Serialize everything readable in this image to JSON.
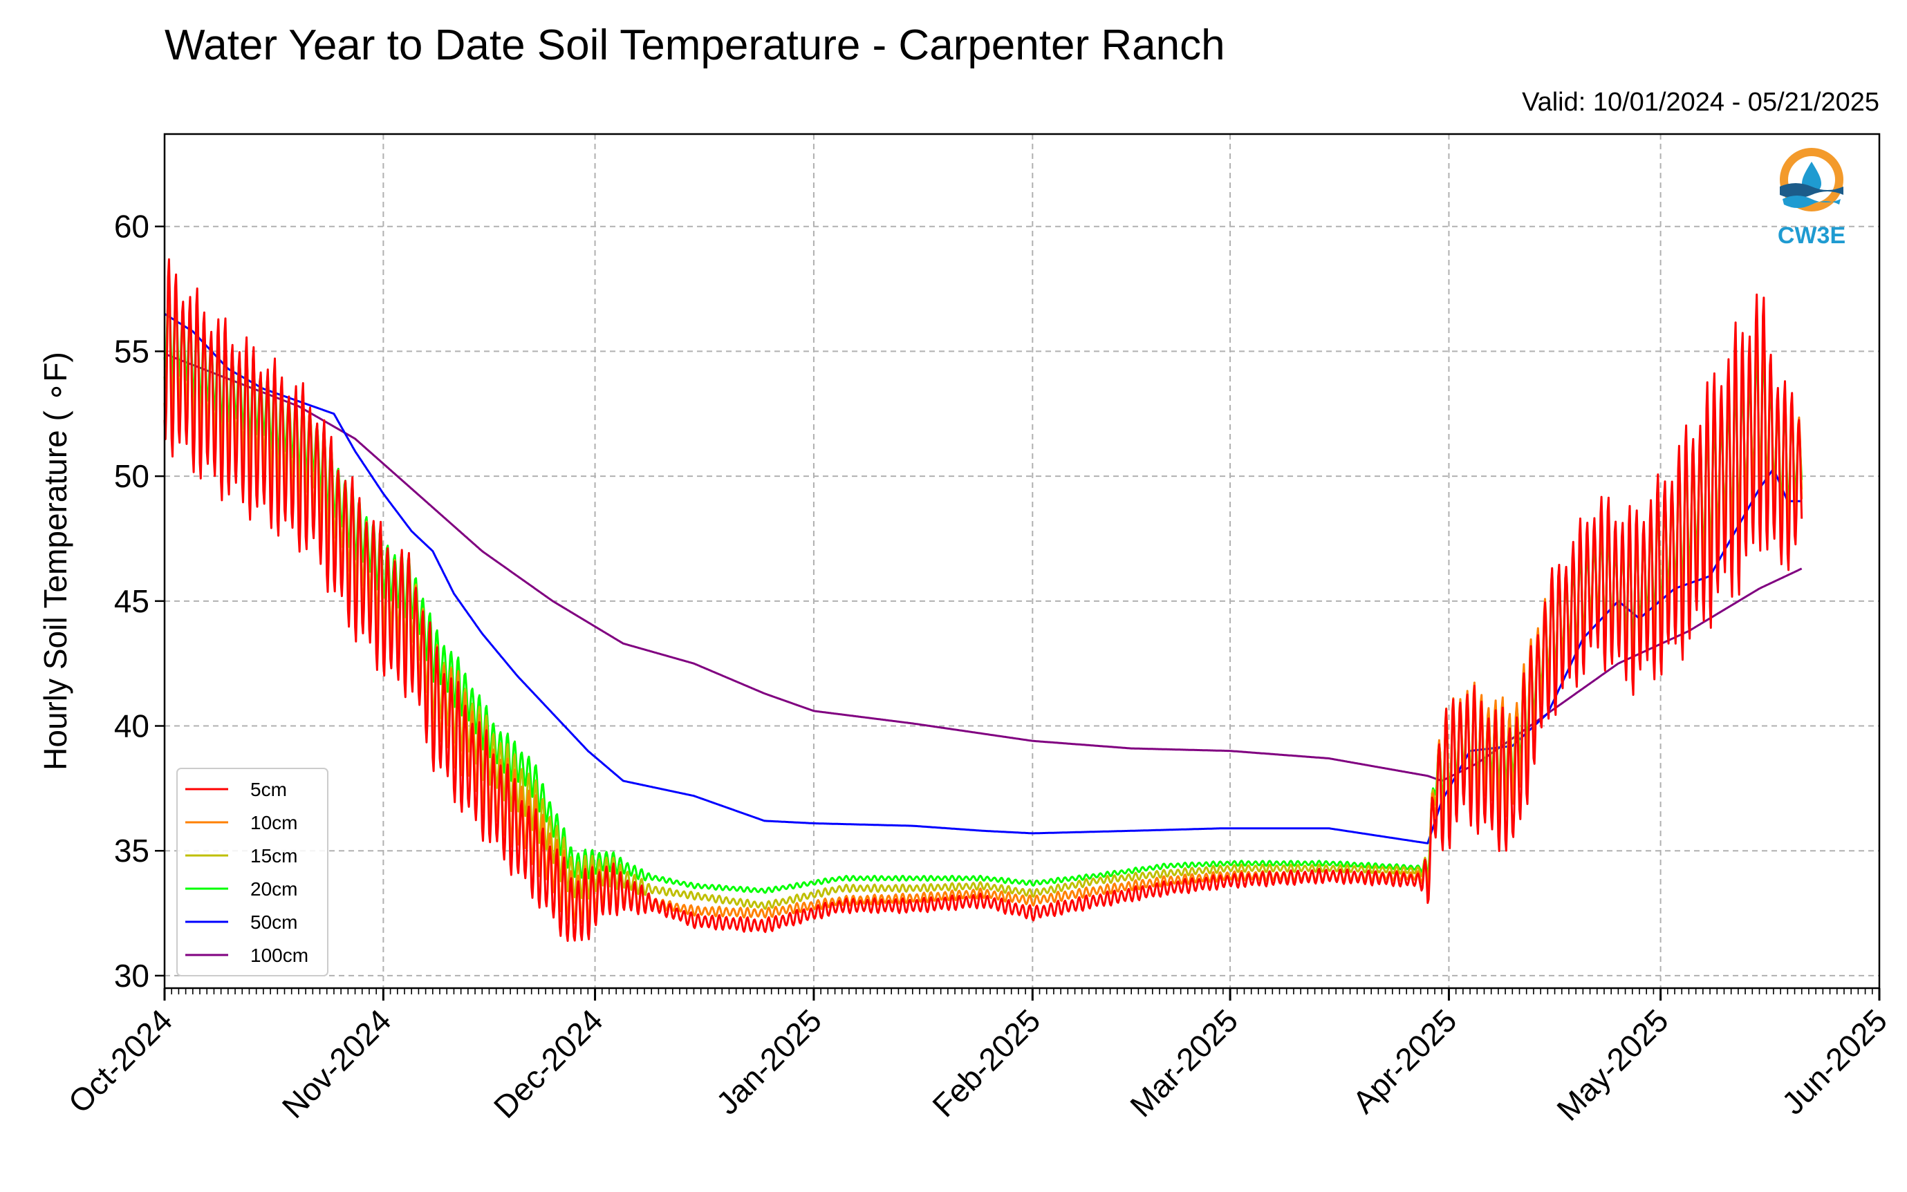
{
  "chart_data": {
    "type": "line",
    "title": "Water Year to Date Soil Temperature - Carpenter Ranch",
    "subtitle": "Valid: 10/01/2024 - 05/21/2025",
    "xlabel": "",
    "ylabel": "Hourly Soil Temperature ( ∘F)",
    "ylim": [
      29.5,
      63.7
    ],
    "xlim": [
      "2024-10-01",
      "2025-06-01"
    ],
    "yticks": [
      30,
      35,
      40,
      45,
      50,
      55,
      60
    ],
    "xticks": [
      "Oct-2024",
      "Nov-2024",
      "Dec-2024",
      "Jan-2025",
      "Feb-2025",
      "Mar-2025",
      "Apr-2025",
      "May-2025",
      "Jun-2025"
    ],
    "grid": true,
    "legend_position": "lower-left",
    "series": [
      {
        "name": "5cm",
        "color": "#ff0000",
        "points": [
          [
            "2024-10-01",
            55
          ],
          [
            "2024-10-08",
            53
          ],
          [
            "2024-10-15",
            51.5
          ],
          [
            "2024-10-22",
            50
          ],
          [
            "2024-10-27",
            47
          ],
          [
            "2024-11-02",
            44.5
          ],
          [
            "2024-11-05",
            44
          ],
          [
            "2024-11-08",
            41
          ],
          [
            "2024-11-12",
            39
          ],
          [
            "2024-11-17",
            37
          ],
          [
            "2024-11-22",
            35
          ],
          [
            "2024-11-28",
            32.5
          ],
          [
            "2024-12-03",
            33.5
          ],
          [
            "2024-12-08",
            33
          ],
          [
            "2024-12-15",
            32.2
          ],
          [
            "2024-12-25",
            32
          ],
          [
            "2025-01-05",
            32.8
          ],
          [
            "2025-01-15",
            32.8
          ],
          [
            "2025-01-25",
            33
          ],
          [
            "2025-02-01",
            32.5
          ],
          [
            "2025-02-10",
            33
          ],
          [
            "2025-02-20",
            33.5
          ],
          [
            "2025-03-01",
            33.8
          ],
          [
            "2025-03-15",
            34
          ],
          [
            "2025-03-29",
            33.8
          ],
          [
            "2025-03-30",
            37
          ],
          [
            "2025-04-03",
            39
          ],
          [
            "2025-04-10",
            37.5
          ],
          [
            "2025-04-15",
            43
          ],
          [
            "2025-04-22",
            46
          ],
          [
            "2025-04-27",
            45
          ],
          [
            "2025-05-01",
            46
          ],
          [
            "2025-05-06",
            48
          ],
          [
            "2025-05-10",
            50
          ],
          [
            "2025-05-13",
            51
          ],
          [
            "2025-05-15",
            52.5
          ],
          [
            "2025-05-18",
            50
          ],
          [
            "2025-05-21",
            50
          ]
        ],
        "amps": [
          [
            0,
            4
          ],
          [
            20,
            3.5
          ],
          [
            35,
            3
          ],
          [
            60,
            1.5
          ],
          [
            70,
            0.3
          ],
          [
            178,
            0.3
          ],
          [
            181,
            3
          ],
          [
            195,
            3
          ],
          [
            210,
            4
          ],
          [
            225,
            6
          ],
          [
            232,
            3
          ]
        ]
      },
      {
        "name": "10cm",
        "color": "#ff8000",
        "points": [
          [
            "2024-10-01",
            55
          ],
          [
            "2024-10-08",
            53.3
          ],
          [
            "2024-10-15",
            52
          ],
          [
            "2024-10-22",
            50.5
          ],
          [
            "2024-10-27",
            47.5
          ],
          [
            "2024-11-02",
            45
          ],
          [
            "2024-11-05",
            44.5
          ],
          [
            "2024-11-08",
            41.5
          ],
          [
            "2024-11-12",
            40
          ],
          [
            "2024-11-17",
            37.5
          ],
          [
            "2024-11-22",
            36
          ],
          [
            "2024-11-28",
            33
          ],
          [
            "2024-12-03",
            33.7
          ],
          [
            "2024-12-08",
            33
          ],
          [
            "2024-12-15",
            32.6
          ],
          [
            "2024-12-25",
            32.5
          ],
          [
            "2025-01-05",
            33
          ],
          [
            "2025-01-15",
            33.1
          ],
          [
            "2025-01-25",
            33.3
          ],
          [
            "2025-02-01",
            33
          ],
          [
            "2025-02-10",
            33.4
          ],
          [
            "2025-02-20",
            33.8
          ],
          [
            "2025-03-01",
            34
          ],
          [
            "2025-03-15",
            34
          ],
          [
            "2025-03-29",
            34
          ],
          [
            "2025-03-30",
            37.5
          ],
          [
            "2025-04-03",
            39.5
          ],
          [
            "2025-04-10",
            38.5
          ],
          [
            "2025-04-15",
            43.5
          ],
          [
            "2025-04-22",
            46
          ],
          [
            "2025-04-27",
            45
          ],
          [
            "2025-05-01",
            46.5
          ],
          [
            "2025-05-06",
            48.5
          ],
          [
            "2025-05-10",
            50.5
          ],
          [
            "2025-05-13",
            51.5
          ],
          [
            "2025-05-15",
            53
          ],
          [
            "2025-05-18",
            50.5
          ],
          [
            "2025-05-21",
            50.5
          ]
        ],
        "amps": [
          [
            0,
            3
          ],
          [
            20,
            2.8
          ],
          [
            35,
            2.4
          ],
          [
            60,
            1.2
          ],
          [
            70,
            0.2
          ],
          [
            178,
            0.2
          ],
          [
            181,
            2.5
          ],
          [
            195,
            2.5
          ],
          [
            210,
            3.2
          ],
          [
            225,
            4.5
          ],
          [
            232,
            2.5
          ]
        ]
      },
      {
        "name": "15cm",
        "color": "#bfbf00",
        "points": [
          [
            "2024-10-01",
            55.5
          ],
          [
            "2024-10-08",
            53.5
          ],
          [
            "2024-10-15",
            52.3
          ],
          [
            "2024-10-22",
            51
          ],
          [
            "2024-10-27",
            48
          ],
          [
            "2024-11-02",
            45.3
          ],
          [
            "2024-11-05",
            45
          ],
          [
            "2024-11-08",
            42
          ],
          [
            "2024-11-12",
            40.5
          ],
          [
            "2024-11-17",
            38.5
          ],
          [
            "2024-11-22",
            37
          ],
          [
            "2024-11-28",
            33.8
          ],
          [
            "2024-12-03",
            34.2
          ],
          [
            "2024-12-08",
            33.5
          ],
          [
            "2024-12-15",
            33.2
          ],
          [
            "2024-12-25",
            32.8
          ],
          [
            "2025-01-05",
            33.5
          ],
          [
            "2025-01-15",
            33.5
          ],
          [
            "2025-01-25",
            33.6
          ],
          [
            "2025-02-01",
            33.3
          ],
          [
            "2025-02-10",
            33.8
          ],
          [
            "2025-02-20",
            34.1
          ],
          [
            "2025-03-01",
            34.3
          ],
          [
            "2025-03-15",
            34.3
          ],
          [
            "2025-03-29",
            34.2
          ],
          [
            "2025-03-30",
            37.8
          ],
          [
            "2025-04-03",
            39.5
          ],
          [
            "2025-04-10",
            38.8
          ],
          [
            "2025-04-15",
            43.5
          ],
          [
            "2025-04-22",
            46.2
          ],
          [
            "2025-04-27",
            45.2
          ],
          [
            "2025-05-01",
            46.6
          ],
          [
            "2025-05-06",
            48.6
          ],
          [
            "2025-05-10",
            50.5
          ],
          [
            "2025-05-13",
            51.5
          ],
          [
            "2025-05-15",
            53
          ],
          [
            "2025-05-18",
            50.6
          ],
          [
            "2025-05-21",
            50.6
          ]
        ],
        "amps": [
          [
            0,
            2.2
          ],
          [
            20,
            2
          ],
          [
            35,
            1.8
          ],
          [
            60,
            0.9
          ],
          [
            70,
            0.15
          ],
          [
            178,
            0.15
          ],
          [
            181,
            2
          ],
          [
            195,
            2
          ],
          [
            210,
            2.5
          ],
          [
            225,
            3.5
          ],
          [
            232,
            2
          ]
        ]
      },
      {
        "name": "20cm",
        "color": "#00ff00",
        "points": [
          [
            "2024-10-01",
            56
          ],
          [
            "2024-10-08",
            54
          ],
          [
            "2024-10-15",
            52.8
          ],
          [
            "2024-10-22",
            51.3
          ],
          [
            "2024-10-27",
            48.5
          ],
          [
            "2024-11-02",
            46
          ],
          [
            "2024-11-05",
            45.5
          ],
          [
            "2024-11-08",
            43
          ],
          [
            "2024-11-12",
            41.5
          ],
          [
            "2024-11-17",
            39.2
          ],
          [
            "2024-11-22",
            38
          ],
          [
            "2024-11-28",
            34.4
          ],
          [
            "2024-12-03",
            34.6
          ],
          [
            "2024-12-08",
            34
          ],
          [
            "2024-12-15",
            33.6
          ],
          [
            "2024-12-25",
            33.4
          ],
          [
            "2025-01-05",
            33.9
          ],
          [
            "2025-01-15",
            33.9
          ],
          [
            "2025-01-25",
            33.9
          ],
          [
            "2025-02-01",
            33.7
          ],
          [
            "2025-02-10",
            34
          ],
          [
            "2025-02-20",
            34.4
          ],
          [
            "2025-03-01",
            34.5
          ],
          [
            "2025-03-15",
            34.5
          ],
          [
            "2025-03-29",
            34.3
          ],
          [
            "2025-03-30",
            38
          ],
          [
            "2025-04-03",
            39.5
          ],
          [
            "2025-04-10",
            39
          ],
          [
            "2025-04-15",
            43.5
          ],
          [
            "2025-04-22",
            46
          ],
          [
            "2025-04-27",
            45.3
          ],
          [
            "2025-05-01",
            46.7
          ],
          [
            "2025-05-06",
            48.7
          ],
          [
            "2025-05-10",
            50.4
          ],
          [
            "2025-05-13",
            51.4
          ],
          [
            "2025-05-15",
            52.8
          ],
          [
            "2025-05-18",
            50.7
          ],
          [
            "2025-05-21",
            50.7
          ]
        ],
        "amps": [
          [
            0,
            1.8
          ],
          [
            20,
            1.5
          ],
          [
            35,
            1.3
          ],
          [
            60,
            0.6
          ],
          [
            70,
            0.1
          ],
          [
            178,
            0.1
          ],
          [
            181,
            1.6
          ],
          [
            195,
            1.6
          ],
          [
            210,
            2
          ],
          [
            225,
            2.8
          ],
          [
            232,
            1.5
          ]
        ]
      },
      {
        "name": "50cm",
        "color": "#0000ff",
        "points": [
          [
            "2024-10-01",
            56.5
          ],
          [
            "2024-10-05",
            55.8
          ],
          [
            "2024-10-10",
            54.3
          ],
          [
            "2024-10-15",
            53.5
          ],
          [
            "2024-10-20",
            53
          ],
          [
            "2024-10-25",
            52.5
          ],
          [
            "2024-10-28",
            51
          ],
          [
            "2024-11-01",
            49.3
          ],
          [
            "2024-11-05",
            47.8
          ],
          [
            "2024-11-08",
            47
          ],
          [
            "2024-11-11",
            45.3
          ],
          [
            "2024-11-15",
            43.7
          ],
          [
            "2024-11-20",
            42
          ],
          [
            "2024-11-25",
            40.5
          ],
          [
            "2024-11-30",
            39
          ],
          [
            "2024-12-05",
            37.8
          ],
          [
            "2024-12-15",
            37.2
          ],
          [
            "2024-12-25",
            36.2
          ],
          [
            "2025-01-01",
            36.1
          ],
          [
            "2025-01-15",
            36
          ],
          [
            "2025-01-25",
            35.8
          ],
          [
            "2025-02-01",
            35.7
          ],
          [
            "2025-02-15",
            35.8
          ],
          [
            "2025-02-28",
            35.9
          ],
          [
            "2025-03-15",
            35.9
          ],
          [
            "2025-03-29",
            35.3
          ],
          [
            "2025-03-31",
            37
          ],
          [
            "2025-04-04",
            39
          ],
          [
            "2025-04-10",
            39.2
          ],
          [
            "2025-04-15",
            40.5
          ],
          [
            "2025-04-20",
            43.5
          ],
          [
            "2025-04-25",
            45
          ],
          [
            "2025-04-28",
            44.3
          ],
          [
            "2025-05-03",
            45.5
          ],
          [
            "2025-05-08",
            46
          ],
          [
            "2025-05-12",
            48
          ],
          [
            "2025-05-15",
            49.5
          ],
          [
            "2025-05-17",
            50.3
          ],
          [
            "2025-05-19",
            49
          ],
          [
            "2025-05-21",
            49
          ]
        ],
        "amps": [
          [
            0,
            0
          ]
        ]
      },
      {
        "name": "100cm",
        "color": "#800080",
        "points": [
          [
            "2024-10-01",
            54.9
          ],
          [
            "2024-10-10",
            53.9
          ],
          [
            "2024-10-20",
            52.8
          ],
          [
            "2024-10-28",
            51.5
          ],
          [
            "2024-11-05",
            49.5
          ],
          [
            "2024-11-15",
            47
          ],
          [
            "2024-11-25",
            45
          ],
          [
            "2024-12-05",
            43.3
          ],
          [
            "2024-12-15",
            42.5
          ],
          [
            "2024-12-25",
            41.3
          ],
          [
            "2025-01-01",
            40.6
          ],
          [
            "2025-01-15",
            40.1
          ],
          [
            "2025-02-01",
            39.4
          ],
          [
            "2025-02-15",
            39.1
          ],
          [
            "2025-03-01",
            39
          ],
          [
            "2025-03-15",
            38.7
          ],
          [
            "2025-03-29",
            38
          ],
          [
            "2025-03-31",
            37.8
          ],
          [
            "2025-04-05",
            38.5
          ],
          [
            "2025-04-15",
            40.5
          ],
          [
            "2025-04-25",
            42.5
          ],
          [
            "2025-05-05",
            43.8
          ],
          [
            "2025-05-15",
            45.5
          ],
          [
            "2025-05-21",
            46.3
          ]
        ],
        "amps": [
          [
            0,
            0
          ]
        ]
      }
    ]
  },
  "logo": {
    "label": "CW3E",
    "colors": {
      "orange": "#f39a2b",
      "blue": "#1f9bd1",
      "navy": "#1c5c8a"
    }
  },
  "styles": {
    "grid_color": "#b0b0b0",
    "axis_color": "#000000"
  }
}
